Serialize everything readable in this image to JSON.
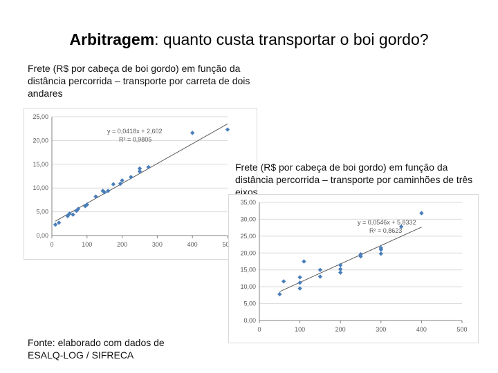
{
  "title": {
    "bold": "Arbitragem",
    "rest": ": quanto custa transportar o boi gordo?"
  },
  "caption_left": "Frete (R$ por cabeça de boi gordo) em função da distância percorrida – transporte por carreta de dois andares",
  "caption_right": "Frete (R$ por cabeça de boi gordo) em função da distância percorrida – transporte por caminhões de três eixos",
  "source": "Fonte: elaborado com dados de ESALQ-LOG / SIFRECA",
  "colors": {
    "marker": "#4a7ebb",
    "trend": "#595959",
    "grid": "#d9d9d9",
    "axis": "#808080",
    "label": "#595959"
  },
  "chart_data": [
    {
      "type": "scatter",
      "ylim": [
        0,
        25
      ],
      "xlim": [
        0,
        500
      ],
      "xticks": [
        "0",
        "100",
        "200",
        "300",
        "400",
        "500"
      ],
      "yticks": [
        "0,00",
        "5,00",
        "10,00",
        "15,00",
        "20,00",
        "25,00"
      ],
      "equation": "y = 0,0418x + 2,602",
      "r2": "R² = 0,9805",
      "trend": {
        "slope": 0.0418,
        "intercept": 2.602
      },
      "points": [
        [
          10,
          2.3
        ],
        [
          20,
          2.7
        ],
        [
          45,
          4.1
        ],
        [
          50,
          4.6
        ],
        [
          60,
          4.4
        ],
        [
          70,
          5.2
        ],
        [
          75,
          5.6
        ],
        [
          95,
          6.2
        ],
        [
          100,
          6.5
        ],
        [
          125,
          8.2
        ],
        [
          145,
          9.4
        ],
        [
          150,
          9.1
        ],
        [
          160,
          9.4
        ],
        [
          175,
          10.8
        ],
        [
          195,
          10.9
        ],
        [
          200,
          11.6
        ],
        [
          225,
          12.3
        ],
        [
          250,
          13.5
        ],
        [
          250,
          14.1
        ],
        [
          275,
          14.4
        ],
        [
          400,
          21.6
        ],
        [
          500,
          22.3
        ]
      ]
    },
    {
      "type": "scatter",
      "ylim": [
        0,
        35
      ],
      "xlim": [
        0,
        500
      ],
      "xticks": [
        "0",
        "100",
        "200",
        "300",
        "400",
        "500"
      ],
      "yticks": [
        "0,00",
        "5,00",
        "10,00",
        "15,00",
        "20,00",
        "25,00",
        "30,00",
        "35,00"
      ],
      "equation": "y = 0,0546x + 5,8332",
      "r2": "R² = 0,8623",
      "trend": {
        "slope": 0.0546,
        "intercept": 5.8332
      },
      "points": [
        [
          50,
          7.8
        ],
        [
          60,
          11.6
        ],
        [
          100,
          9.5
        ],
        [
          100,
          11.2
        ],
        [
          100,
          12.8
        ],
        [
          110,
          17.5
        ],
        [
          150,
          13.0
        ],
        [
          150,
          15.0
        ],
        [
          200,
          14.2
        ],
        [
          200,
          15.2
        ],
        [
          200,
          16.4
        ],
        [
          250,
          19.0
        ],
        [
          250,
          19.6
        ],
        [
          300,
          19.8
        ],
        [
          300,
          21.0
        ],
        [
          300,
          21.5
        ],
        [
          350,
          27.8
        ],
        [
          400,
          31.8
        ]
      ]
    }
  ]
}
